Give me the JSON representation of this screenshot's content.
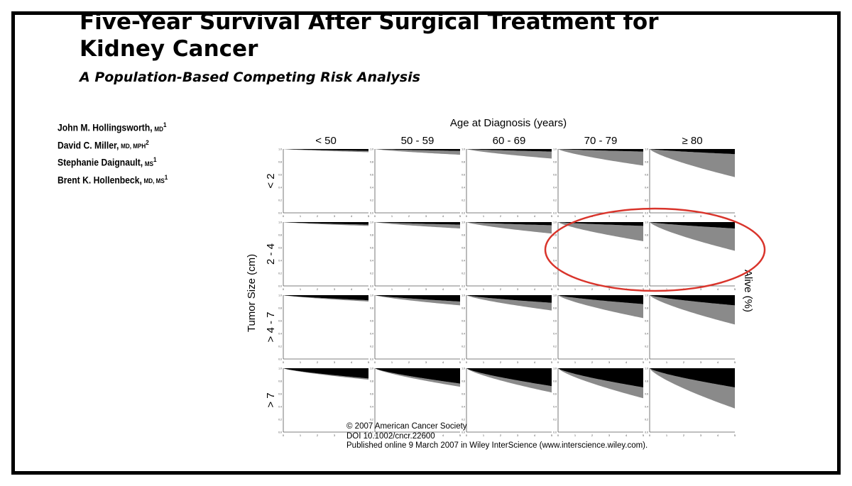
{
  "paper": {
    "title": "Five-Year Survival After Surgical Treatment for\nKidney Cancer",
    "subtitle": "A Population-Based Competing Risk Analysis",
    "authors": [
      {
        "name": "John M. Hollingsworth,",
        "credentials": "MD",
        "affiliation": "1"
      },
      {
        "name": "David C. Miller,",
        "credentials": "MD, MPH",
        "affiliation": "2"
      },
      {
        "name": "Stephanie Daignault,",
        "credentials": "MS",
        "affiliation": "1"
      },
      {
        "name": "Brent K. Hollenbeck,",
        "credentials": "MD, MS",
        "affiliation": "1"
      }
    ],
    "footer": {
      "copyright": "© 2007 American Cancer Society",
      "doi": "DOI 10.1002/cncr.22600",
      "published": "Published online 9 March 2007 in Wiley InterScience (www.interscience.wiley.com)."
    }
  },
  "chart_data": {
    "type": "area",
    "column_axis_label": "Age at Diagnosis (years)",
    "row_axis_label": "Tumor Size (cm)",
    "right_axis_label": "Alive (%)",
    "columns": [
      "< 50",
      "50 - 59",
      "60 - 69",
      "70 - 79",
      "≥ 80"
    ],
    "rows": [
      "< 2",
      "2 - 4",
      "> 4 - 7",
      "> 7"
    ],
    "x_ticks": [
      "0",
      "1",
      "2",
      "3",
      "4",
      "5"
    ],
    "y_ticks": [
      "1.0",
      "0.8",
      "0.6",
      "0.4",
      "0.2",
      "0.0"
    ],
    "xlim": [
      0,
      5
    ],
    "ylim": [
      0,
      1
    ],
    "series_colors": {
      "cancer_death": "#000000",
      "other_death": "#8a8a8a",
      "alive": "#ffffff"
    },
    "note": "",
    "panels": [
      [
        {
          "cancer_5y": 0.03,
          "other_5y": 0.02
        },
        {
          "cancer_5y": 0.03,
          "other_5y": 0.06
        },
        {
          "cancer_5y": 0.04,
          "other_5y": 0.11
        },
        {
          "cancer_5y": 0.04,
          "other_5y": 0.22
        },
        {
          "cancer_5y": 0.08,
          "other_5y": 0.36
        }
      ],
      [
        {
          "cancer_5y": 0.04,
          "other_5y": 0.02
        },
        {
          "cancer_5y": 0.04,
          "other_5y": 0.06
        },
        {
          "cancer_5y": 0.05,
          "other_5y": 0.13
        },
        {
          "cancer_5y": 0.06,
          "other_5y": 0.24
        },
        {
          "cancer_5y": 0.1,
          "other_5y": 0.35
        }
      ],
      [
        {
          "cancer_5y": 0.08,
          "other_5y": 0.02
        },
        {
          "cancer_5y": 0.1,
          "other_5y": 0.06
        },
        {
          "cancer_5y": 0.12,
          "other_5y": 0.12
        },
        {
          "cancer_5y": 0.14,
          "other_5y": 0.22
        },
        {
          "cancer_5y": 0.16,
          "other_5y": 0.3
        }
      ],
      [
        {
          "cancer_5y": 0.16,
          "other_5y": 0.02
        },
        {
          "cancer_5y": 0.24,
          "other_5y": 0.05
        },
        {
          "cancer_5y": 0.28,
          "other_5y": 0.1
        },
        {
          "cancer_5y": 0.3,
          "other_5y": 0.17
        },
        {
          "cancer_5y": 0.3,
          "other_5y": 0.33
        }
      ]
    ],
    "highlight": {
      "row": 1,
      "columns": [
        3,
        4
      ],
      "shape": "ellipse",
      "color": "#d9342b"
    }
  }
}
